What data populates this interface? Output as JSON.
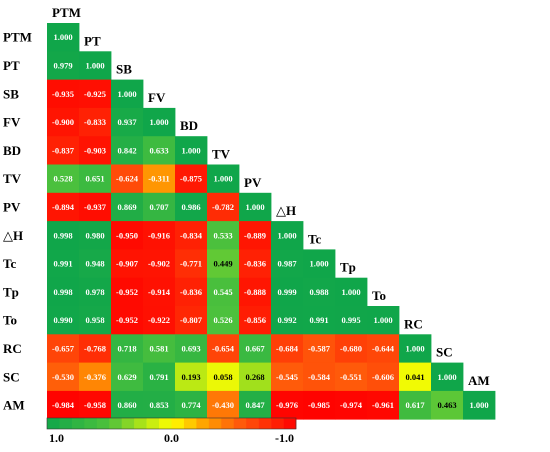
{
  "chart_data": {
    "type": "heatmap",
    "title": "",
    "variables": [
      "PTM",
      "PT",
      "SB",
      "FV",
      "BD",
      "TV",
      "PV",
      "△H",
      "Tc",
      "Tp",
      "To",
      "RC",
      "SC",
      "AM"
    ],
    "matrix": [
      [
        "1.000"
      ],
      [
        "0.979",
        "1.000"
      ],
      [
        "-0.935",
        "-0.925",
        "1.000"
      ],
      [
        "-0.900",
        "-0.833",
        "0.937",
        "1.000"
      ],
      [
        "-0.837",
        "-0.903",
        "0.842",
        "0.633",
        "1.000"
      ],
      [
        "0.528",
        "0.651",
        "-0.624",
        "-0.311",
        "-0.875",
        "1.000"
      ],
      [
        "-0.894",
        "-0.937",
        "0.869",
        "0.707",
        "0.986",
        "-0.782",
        "1.000"
      ],
      [
        "0.998",
        "0.980",
        "-0.950",
        "-0.916",
        "-0.834",
        "0.533",
        "-0.889",
        "1.000"
      ],
      [
        "0.991",
        "0.948",
        "-0.907",
        "-0.902",
        "-0.771",
        "0.449",
        "-0.836",
        "0.987",
        "1.000"
      ],
      [
        "0.998",
        "0.978",
        "-0.952",
        "-0.914",
        "-0.836",
        "0.545",
        "-0.888",
        "0.999",
        "0.988",
        "1.000"
      ],
      [
        "0.990",
        "0.958",
        "-0.952",
        "-0.922",
        "-0.807",
        "0.526",
        "-0.856",
        "0.992",
        "0.991",
        "0.995",
        "1.000"
      ],
      [
        "-0.657",
        "-0.768",
        "0.718",
        "0.581",
        "0.693",
        "-0.654",
        "0.667",
        "-0.684",
        "-0.587",
        "-0.680",
        "-0.644",
        "1.000"
      ],
      [
        "-0.530",
        "-0.376",
        "0.629",
        "0.791",
        "0.193",
        "0.058",
        "0.268",
        "-0.545",
        "-0.584",
        "-0.551",
        "-0.606",
        "0.041",
        "1.000"
      ],
      [
        "-0.984",
        "-0.958",
        "0.860",
        "0.853",
        "0.774",
        "-0.430",
        "0.847",
        "-0.976",
        "-0.985",
        "-0.974",
        "-0.961",
        "0.617",
        "0.463",
        "1.000"
      ]
    ],
    "colorbar": {
      "tick_labels": [
        "1.0",
        "0.0",
        "-1.0"
      ],
      "range": [
        1.0,
        -1.0
      ],
      "colors": {
        "positive": "#10a64a",
        "zero": "#ffff00",
        "negative": "#ff0000"
      }
    }
  }
}
